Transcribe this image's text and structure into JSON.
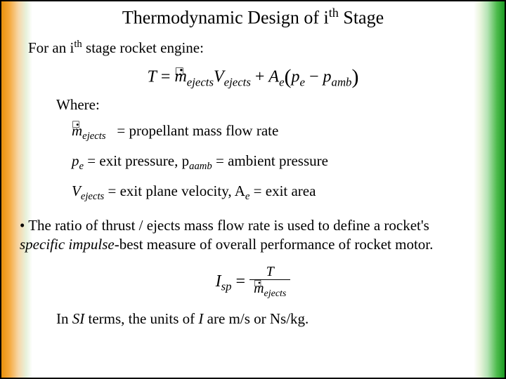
{
  "title": {
    "text": "Thermodynamic Design of i",
    "sup": "th",
    "tail": " Stage"
  },
  "line1": {
    "pre": "For an i",
    "sup": "th",
    "post": " stage rocket engine:"
  },
  "eq1": {
    "T": "T",
    "eq": " = ",
    "m": "m",
    "sub1": "ejects",
    "V": "V",
    "sub2": "ejects",
    "plus": " + ",
    "A": "A",
    "subA": "e",
    "lp": "(",
    "pe": "p",
    "pesub": "e",
    "minus": " − ",
    "pamb": "p",
    "pambsub": "amb",
    "rp": ")"
  },
  "where": "Where:",
  "def_m": {
    "sym": "m",
    "sub": "ejects",
    "text": " = propellant mass flow rate"
  },
  "def_p": {
    "sym": "p",
    "sub1": "e",
    "mid": " = exit pressure, p",
    "sub2": "aamb",
    "tail": " = ambient pressure"
  },
  "def_v": {
    "sym": "V",
    "sub1": "ejects",
    "mid": " = exit plane velocity, A",
    "sub2": "e",
    "tail": " = exit area"
  },
  "bullet": {
    "lead": "• The ratio of thrust / ejects mass flow rate is used to define a rocket's ",
    "emph": "specific impulse",
    "tail": "-best measure of overall performance of rocket motor."
  },
  "eq2": {
    "I": "I",
    "Isub": "sp",
    "eq": " = ",
    "T": "T",
    "m": "m",
    "msub": "ejects"
  },
  "closing": {
    "pre": "In ",
    "si": "SI",
    "mid": " terms, the units of ",
    "I": "I",
    "tail": " are m/s or Ns/kg."
  },
  "colors": {
    "left": "#e8910b",
    "right": "#1a9b21",
    "text": "#000000",
    "bg": "#ffffff"
  }
}
